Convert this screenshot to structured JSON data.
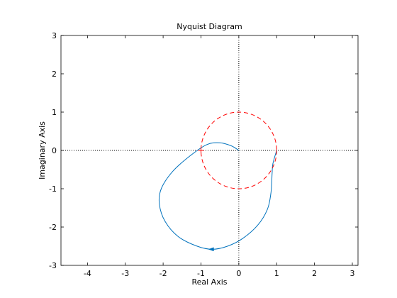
{
  "chart_data": {
    "type": "line",
    "title": "Nyquist Diagram",
    "xlabel": "Real Axis",
    "ylabel": "Imaginary Axis",
    "xlim": [
      -4.7,
      3.15
    ],
    "ylim": [
      -3,
      3
    ],
    "xticks": [
      -4,
      -3,
      -2,
      -1,
      0,
      1,
      2,
      3
    ],
    "yticks": [
      -3,
      -2,
      -1,
      0,
      1,
      2,
      3
    ],
    "grid": false,
    "legend": "none",
    "zero_lines": "dotted",
    "series": [
      {
        "style": "solid",
        "color": "#0072bd",
        "x": [
          0,
          -0.2,
          -0.5,
          -0.85,
          -1.3,
          -1.75,
          -2.05,
          -2.1,
          -1.95,
          -1.6,
          -1.1,
          -0.7,
          -0.3,
          0.1,
          0.5,
          0.75,
          0.85,
          0.88,
          0.9,
          1.0
        ],
        "y": [
          0,
          0.12,
          0.2,
          0.15,
          -0.15,
          -0.55,
          -1.0,
          -1.4,
          -1.85,
          -2.25,
          -2.5,
          -2.58,
          -2.5,
          -2.3,
          -1.95,
          -1.55,
          -1.1,
          -0.6,
          -0.35,
          0
        ]
      },
      {
        "style": "dashed",
        "color": "#ff0000",
        "circle": {
          "cx": 0,
          "cy": 0,
          "r": 1
        }
      }
    ],
    "annotations": [
      {
        "type": "marker",
        "symbol": "+",
        "x": -1,
        "y": 0,
        "color": "#ff0000"
      },
      {
        "type": "direction-arrow",
        "x": -0.72,
        "y": -2.58,
        "direction": "left",
        "color": "#0072bd"
      }
    ]
  }
}
